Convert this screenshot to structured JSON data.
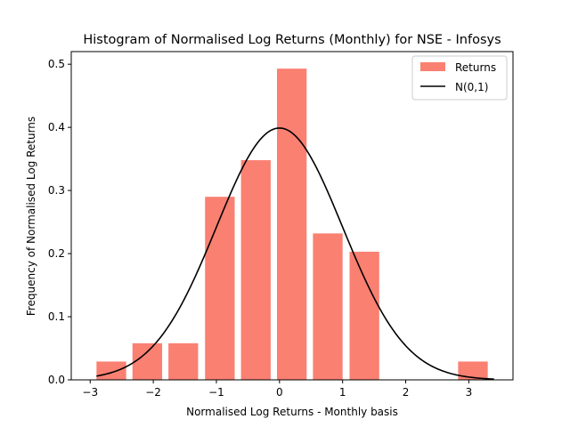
{
  "chart_data": {
    "type": "bar",
    "title": "Histogram of Normalised Log Returns (Monthly) for NSE - Infosys",
    "xlabel": "Normalised Log Returns - Monthly basis",
    "ylabel": "Frequency of Normalised Log Returns",
    "xlim": [
      -3.3,
      3.7
    ],
    "ylim": [
      0,
      0.52
    ],
    "xticks": [
      -3,
      -2,
      -1,
      0,
      1,
      2,
      3
    ],
    "xtick_labels": [
      "−3",
      "−2",
      "−1",
      "0",
      "1",
      "2",
      "3"
    ],
    "yticks": [
      0.0,
      0.1,
      0.2,
      0.3,
      0.4,
      0.5
    ],
    "ytick_labels": [
      "0.0",
      "0.1",
      "0.2",
      "0.3",
      "0.4",
      "0.5"
    ],
    "grid": false,
    "legend_position": "top-right",
    "series": [
      {
        "name": "Returns",
        "kind": "histogram",
        "color": "#fa8072",
        "bars": [
          {
            "left": -2.9,
            "right": -2.43,
            "value": 0.029
          },
          {
            "left": -2.33,
            "right": -1.86,
            "value": 0.058
          },
          {
            "left": -1.76,
            "right": -1.29,
            "value": 0.058
          },
          {
            "left": -1.18,
            "right": -0.71,
            "value": 0.29
          },
          {
            "left": -0.61,
            "right": -0.14,
            "value": 0.348
          },
          {
            "left": -0.04,
            "right": 0.43,
            "value": 0.493
          },
          {
            "left": 0.53,
            "right": 1.0,
            "value": 0.232
          },
          {
            "left": 1.11,
            "right": 1.58,
            "value": 0.203
          },
          {
            "left": 1.68,
            "right": 2.15,
            "value": 0.0
          },
          {
            "left": 2.25,
            "right": 2.72,
            "value": 0.0
          },
          {
            "left": 2.83,
            "right": 3.3,
            "value": 0.029
          }
        ]
      },
      {
        "name": "N(0,1)",
        "kind": "line",
        "color": "#000000",
        "function": "standard_normal_pdf",
        "x_range": [
          -2.9,
          3.4
        ]
      }
    ]
  }
}
